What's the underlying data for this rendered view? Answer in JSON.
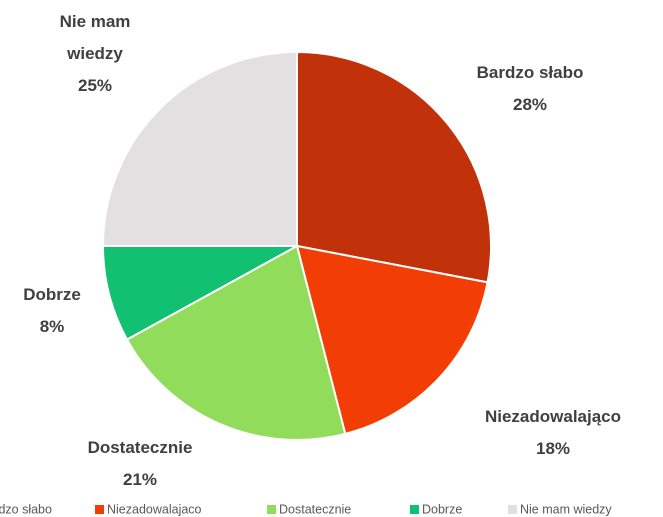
{
  "chart_data": {
    "type": "pie",
    "categories": [
      "Bardzo słabo",
      "Niezadowalająco",
      "Dostatecznie",
      "Dobrze",
      "Nie mam wiedzy"
    ],
    "values": [
      28,
      18,
      21,
      8,
      25
    ],
    "value_labels": [
      "28%",
      "18%",
      "21%",
      "8%",
      "25%"
    ],
    "colors": [
      "#c2320a",
      "#f23d05",
      "#92dc5c",
      "#12c072",
      "#e2e0e0"
    ],
    "legend": [
      "Bardzo słabo",
      "Niezadowalajaco",
      "Dostatecznie",
      "Dobrze",
      "Nie mam wiedzy"
    ],
    "legend_position": "bottom"
  }
}
